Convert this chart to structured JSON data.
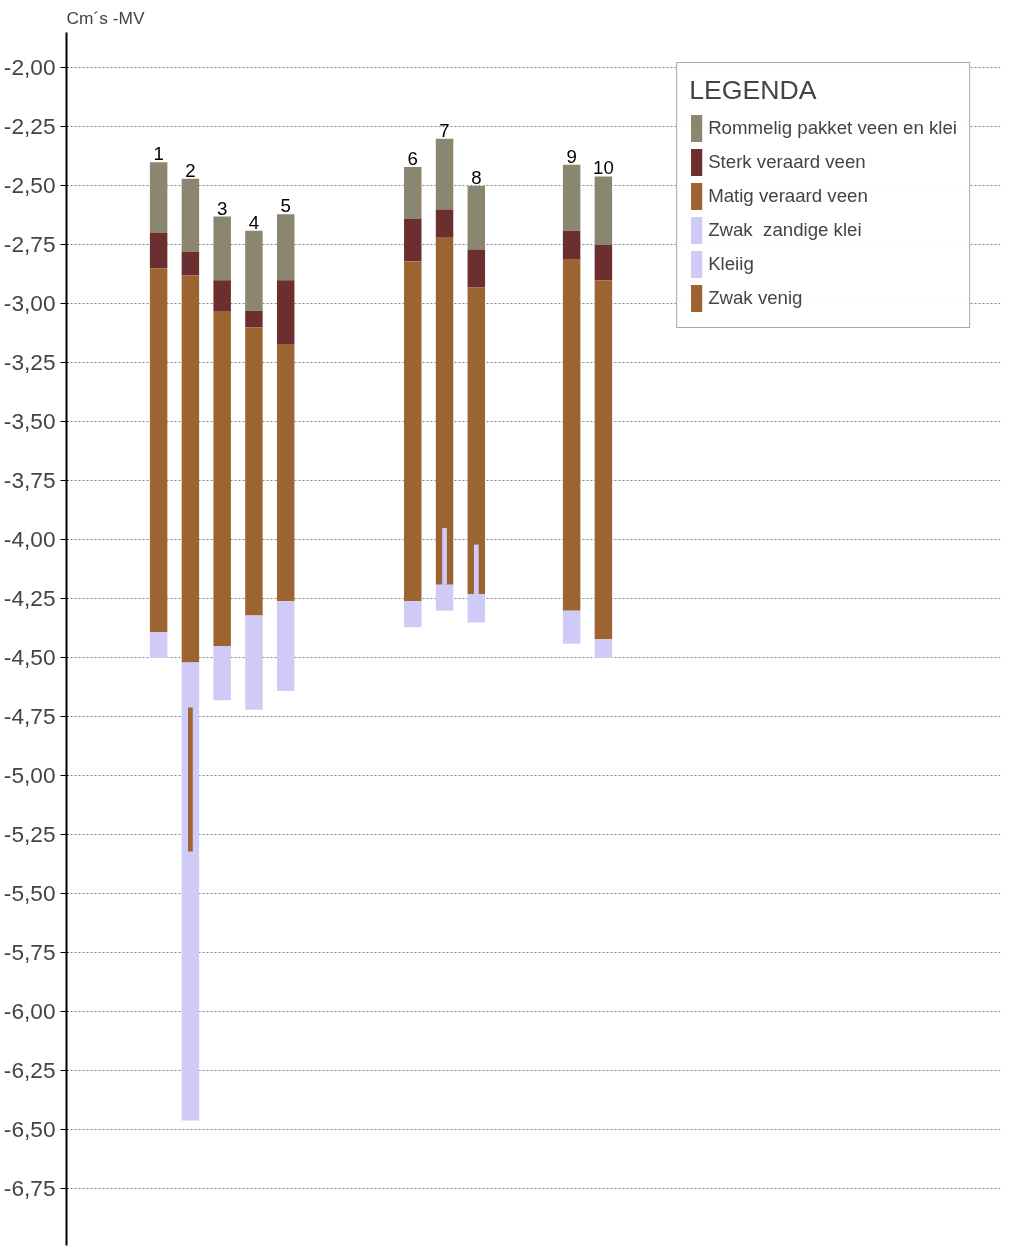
{
  "chart_data": {
    "type": "bar",
    "ylabel": "Cm´s -MV",
    "legend_title": "LEGENDA",
    "legend": "top right",
    "grid": "y",
    "categories": [
      "1",
      "2",
      "3",
      "4",
      "5",
      null,
      null,
      null,
      "6",
      "7",
      "8",
      null,
      null,
      "9",
      "10"
    ],
    "series": [
      {
        "name": "Rommelig pakket veen en klei",
        "color": "#8b8670",
        "base": [
          -2.4,
          -2.47,
          -2.63,
          -2.69,
          -2.62,
          null,
          null,
          null,
          -2.42,
          -2.3,
          -2.5,
          null,
          null,
          -2.41,
          -2.46
        ],
        "values": [
          -0.3,
          -0.31,
          -0.27,
          -0.34,
          -0.28,
          null,
          null,
          null,
          -0.22,
          -0.3,
          -0.27,
          null,
          null,
          -0.28,
          -0.29
        ]
      },
      {
        "name": "Sterk veraard veen",
        "color": "#6b2f2f",
        "base": [
          -2.7,
          -2.78,
          -2.9,
          -3.03,
          -2.9,
          null,
          null,
          null,
          -2.64,
          -2.6,
          -2.77,
          null,
          null,
          -2.69,
          -2.75
        ],
        "values": [
          -0.15,
          -0.1,
          -0.13,
          -0.07,
          -0.27,
          null,
          null,
          null,
          -0.18,
          -0.12,
          -0.16,
          null,
          null,
          -0.12,
          -0.15
        ]
      },
      {
        "name": "Matig veraard veen",
        "color": "#9c6430",
        "base": [
          -2.85,
          -2.88,
          -3.03,
          -3.1,
          -3.17,
          null,
          null,
          null,
          -2.82,
          -2.72,
          -2.93,
          null,
          null,
          -2.81,
          -2.9
        ],
        "values": [
          -1.54,
          -1.64,
          -1.42,
          -1.22,
          -1.09,
          null,
          null,
          null,
          -1.44,
          -1.47,
          -1.3,
          null,
          null,
          -1.49,
          -1.52
        ]
      },
      {
        "name": "Zwak  zandige klei",
        "color": "#cfcbf6",
        "base": [
          -4.39,
          -4.52,
          -4.45,
          -4.32,
          -4.26,
          null,
          null,
          null,
          -4.26,
          -4.19,
          -4.23,
          null,
          null,
          -4.3,
          -4.42
        ],
        "values": [
          -0.11,
          -1.94,
          -0.23,
          -0.4,
          -0.38,
          null,
          null,
          null,
          -0.11,
          -0.11,
          -0.12,
          null,
          null,
          -0.14,
          -0.08
        ]
      },
      {
        "name": "Kleiig",
        "color": "#cfcbf6",
        "base": [
          null,
          null,
          null,
          null,
          null,
          null,
          null,
          null,
          null,
          -3.95,
          -4.02,
          null,
          null,
          null,
          null
        ],
        "values": [
          null,
          null,
          null,
          null,
          null,
          null,
          null,
          null,
          null,
          -0.24,
          -0.21,
          null,
          null,
          null,
          null
        ]
      },
      {
        "name": "Zwak venig",
        "color": "#9c6430",
        "base": [
          null,
          -4.71,
          null,
          null,
          null,
          null,
          null,
          null,
          null,
          null,
          null,
          null,
          null,
          null,
          null
        ],
        "values": [
          null,
          -0.61,
          null,
          null,
          null,
          null,
          null,
          null,
          null,
          null,
          null,
          null,
          null,
          null,
          null
        ]
      }
    ],
    "ylim": [
      -6.99,
      -1.85
    ],
    "yticks": [
      {
        "value": -2.0,
        "label": "-2,00"
      },
      {
        "value": -2.25,
        "label": "-2,25"
      },
      {
        "value": -2.5,
        "label": "-2,50"
      },
      {
        "value": -2.75,
        "label": "-2,75"
      },
      {
        "value": -3.0,
        "label": "-3,00"
      },
      {
        "value": -3.25,
        "label": "-3,25"
      },
      {
        "value": -3.5,
        "label": "-3,50"
      },
      {
        "value": -3.75,
        "label": "-3,75"
      },
      {
        "value": -4.0,
        "label": "-4,00"
      },
      {
        "value": -4.25,
        "label": "-4,25"
      },
      {
        "value": -4.5,
        "label": "-4,50"
      },
      {
        "value": -4.75,
        "label": "-4,75"
      },
      {
        "value": -5.0,
        "label": "-5,00"
      },
      {
        "value": -5.25,
        "label": "-5,25"
      },
      {
        "value": -5.5,
        "label": "-5,50"
      },
      {
        "value": -5.75,
        "label": "-5,75"
      },
      {
        "value": -6.0,
        "label": "-6,00"
      },
      {
        "value": -6.25,
        "label": "-6,25"
      },
      {
        "value": -6.5,
        "label": "-6,50"
      },
      {
        "value": -6.75,
        "label": "-6,75"
      }
    ]
  }
}
